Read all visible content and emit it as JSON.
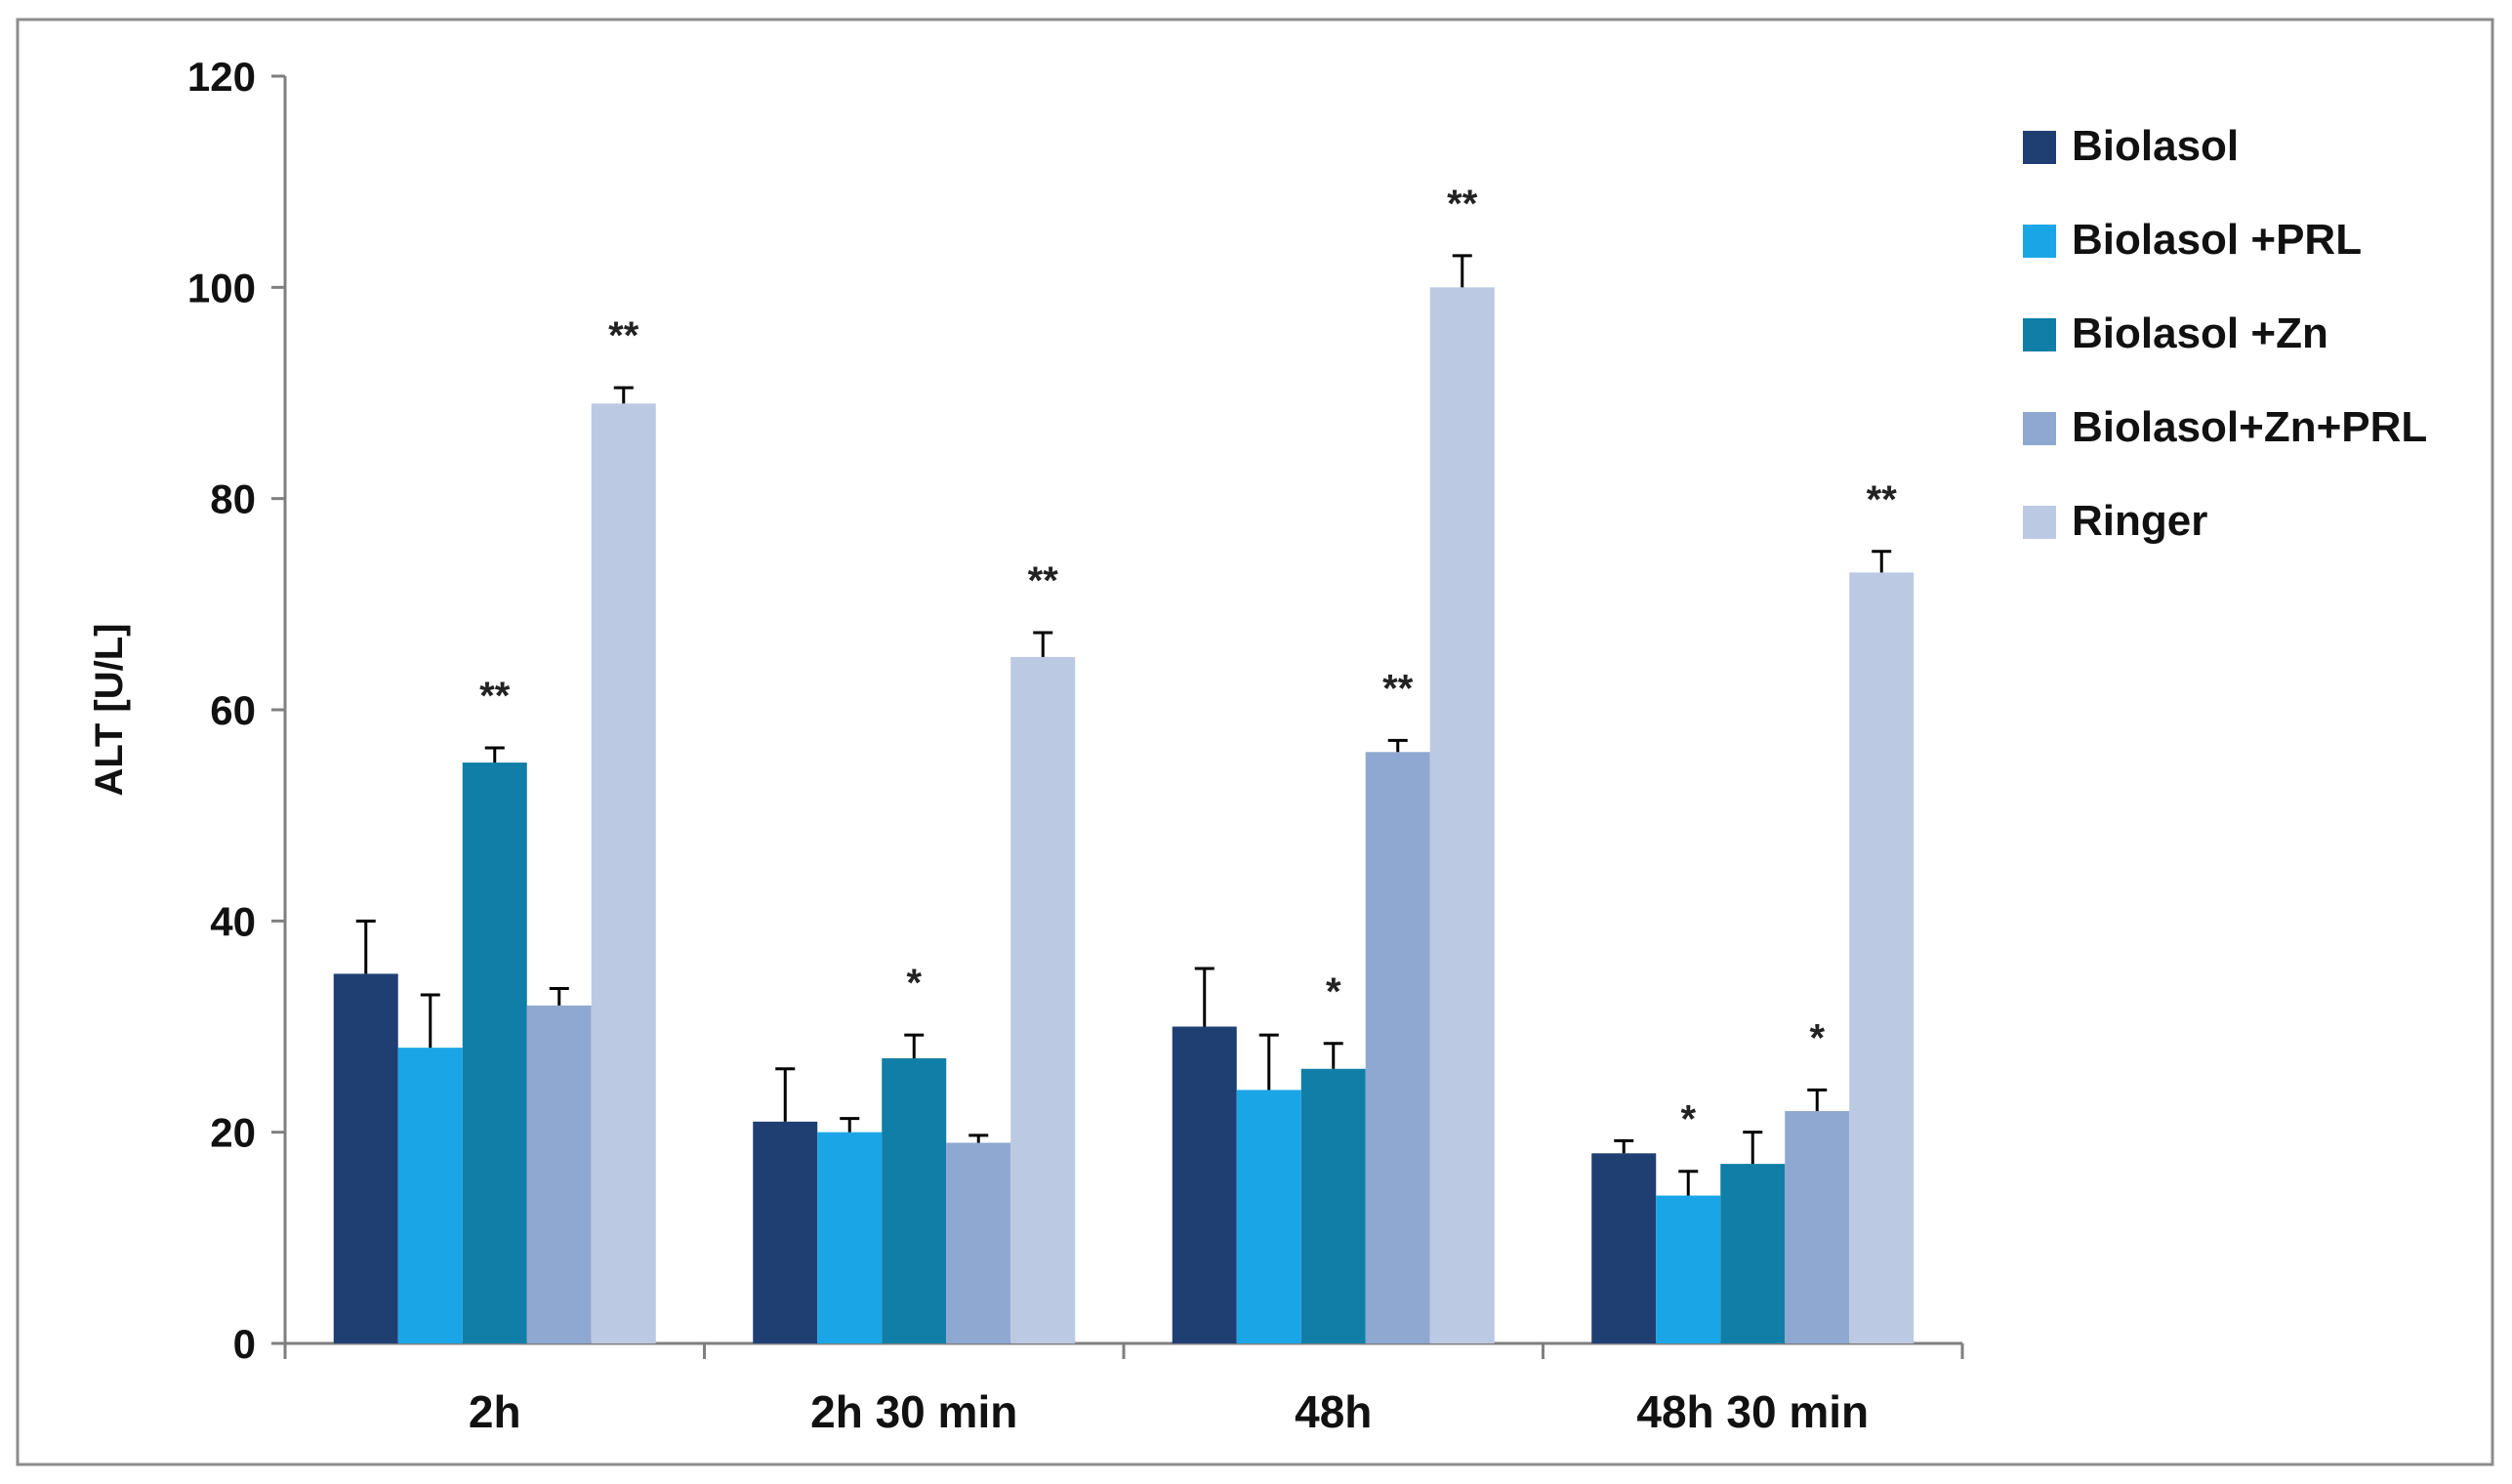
{
  "chart_data": {
    "type": "bar",
    "title": "",
    "xlabel": "",
    "ylabel": "ALT [U/L]",
    "ylim": [
      0,
      120
    ],
    "yticks": [
      0,
      20,
      40,
      60,
      80,
      100,
      120
    ],
    "grid": false,
    "legend_position": "right",
    "categories": [
      "2h",
      "2h 30 min",
      "48h",
      "48h 30 min"
    ],
    "series": [
      {
        "name": "Biolasol",
        "color": "#1f3f73",
        "values": [
          35,
          21,
          30,
          18
        ],
        "errors": [
          5,
          5,
          5.5,
          1.2
        ],
        "annotations": [
          "",
          "",
          "",
          ""
        ]
      },
      {
        "name": "Biolasol +PRL",
        "color": "#1aa6e6",
        "values": [
          28,
          20,
          24,
          14
        ],
        "errors": [
          5,
          1.3,
          5.2,
          2.3
        ],
        "annotations": [
          "",
          "",
          "",
          "*"
        ]
      },
      {
        "name": "Biolasol +Zn",
        "color": "#107ea6",
        "values": [
          55,
          27,
          26,
          17
        ],
        "errors": [
          1.4,
          2.2,
          2.4,
          3
        ],
        "annotations": [
          "**",
          "*",
          "*",
          ""
        ]
      },
      {
        "name": "Biolasol+Zn+PRL",
        "color": "#8fa8d1",
        "values": [
          32,
          19,
          56,
          22
        ],
        "errors": [
          1.6,
          0.7,
          1.1,
          2
        ],
        "annotations": [
          "",
          "",
          "**",
          "*"
        ]
      },
      {
        "name": "Ringer",
        "color": "#bcc9e2",
        "values": [
          89,
          65,
          100,
          73
        ],
        "errors": [
          1.5,
          2.3,
          3,
          2
        ],
        "annotations": [
          "**",
          "**",
          "**",
          "**"
        ]
      }
    ]
  }
}
